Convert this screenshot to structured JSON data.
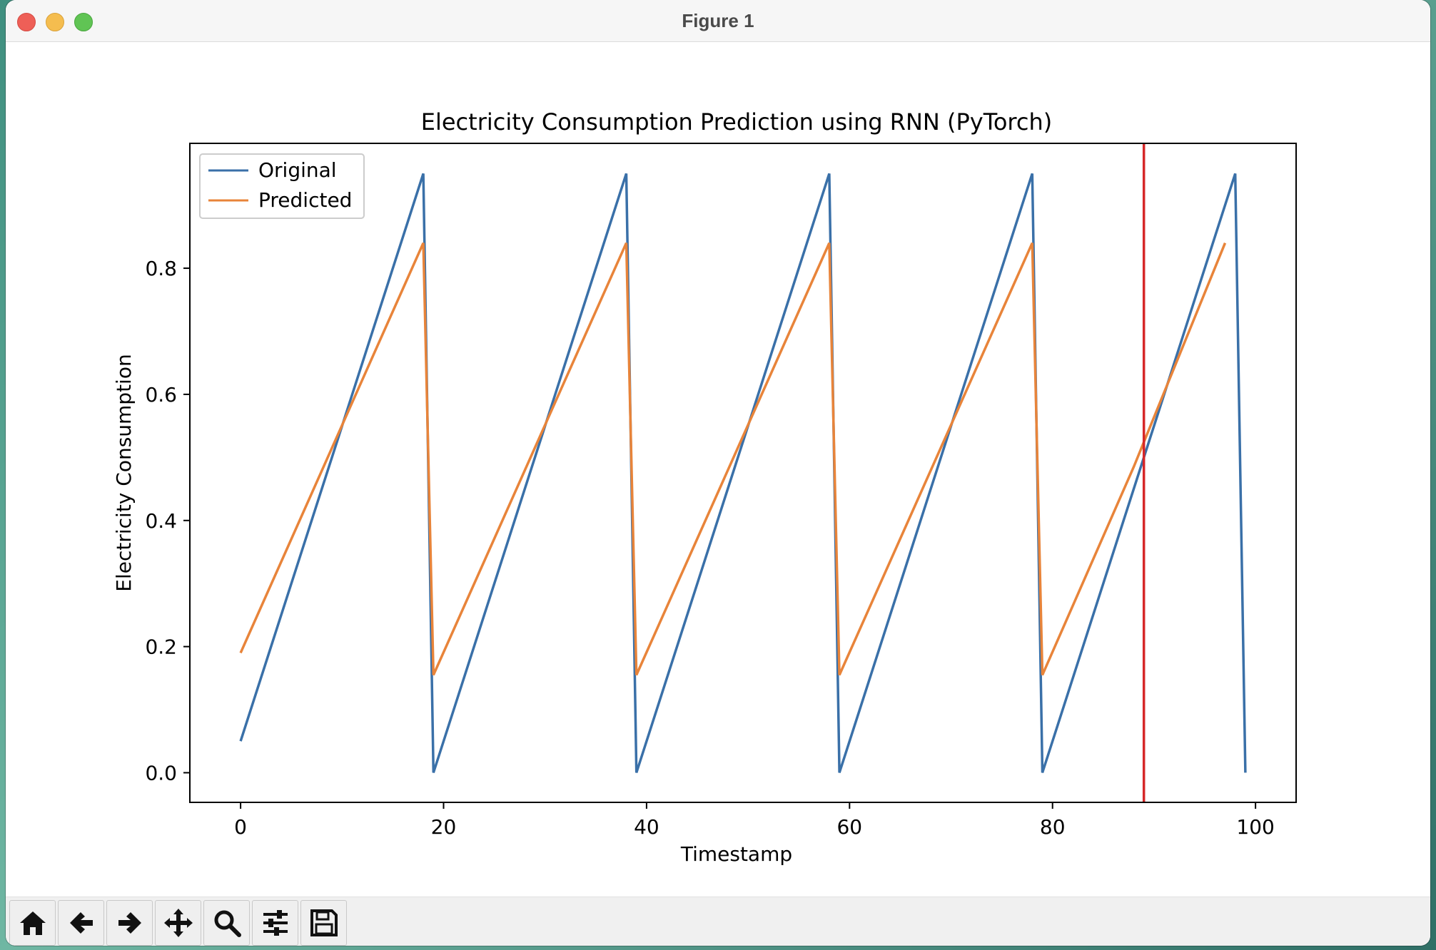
{
  "window": {
    "title": "Figure 1"
  },
  "toolbar": {
    "buttons": [
      {
        "name": "home-button",
        "icon": "home-icon"
      },
      {
        "name": "back-button",
        "icon": "arrow-left-icon"
      },
      {
        "name": "forward-button",
        "icon": "arrow-right-icon"
      },
      {
        "name": "pan-button",
        "icon": "move-icon"
      },
      {
        "name": "zoom-button",
        "icon": "magnifier-icon"
      },
      {
        "name": "configure-subplots-button",
        "icon": "sliders-icon"
      },
      {
        "name": "save-button",
        "icon": "save-icon"
      }
    ]
  },
  "chart_data": {
    "type": "line",
    "title": "Electricity Consumption Prediction using RNN (PyTorch)",
    "xlabel": "Timestamp",
    "ylabel": "Electricity Consumption",
    "xlim": [
      -5,
      104
    ],
    "ylim": [
      -0.047,
      0.998
    ],
    "xticks": [
      0,
      20,
      40,
      60,
      80,
      100
    ],
    "yticks": [
      0.0,
      0.2,
      0.4,
      0.6,
      0.8
    ],
    "ytick_labels": [
      "0.0",
      "0.2",
      "0.4",
      "0.6",
      "0.8"
    ],
    "legend": {
      "position": "top-left"
    },
    "vline": {
      "x": 89,
      "color": "#d62728"
    },
    "series": [
      {
        "name": "Original",
        "color": "#3a70a8",
        "points": [
          [
            0,
            0.05
          ],
          [
            18,
            0.95
          ],
          [
            19,
            0.0
          ],
          [
            38,
            0.95
          ],
          [
            39,
            0.0
          ],
          [
            58,
            0.95
          ],
          [
            59,
            0.0
          ],
          [
            78,
            0.95
          ],
          [
            79,
            0.0
          ],
          [
            98,
            0.95
          ],
          [
            99,
            0.0
          ]
        ]
      },
      {
        "name": "Predicted",
        "color": "#e8843a",
        "points": [
          [
            0,
            0.19
          ],
          [
            18,
            0.84
          ],
          [
            19,
            0.155
          ],
          [
            38,
            0.84
          ],
          [
            39,
            0.155
          ],
          [
            58,
            0.84
          ],
          [
            59,
            0.155
          ],
          [
            78,
            0.84
          ],
          [
            79,
            0.155
          ],
          [
            88,
            0.485
          ],
          [
            97,
            0.84
          ]
        ]
      }
    ]
  }
}
